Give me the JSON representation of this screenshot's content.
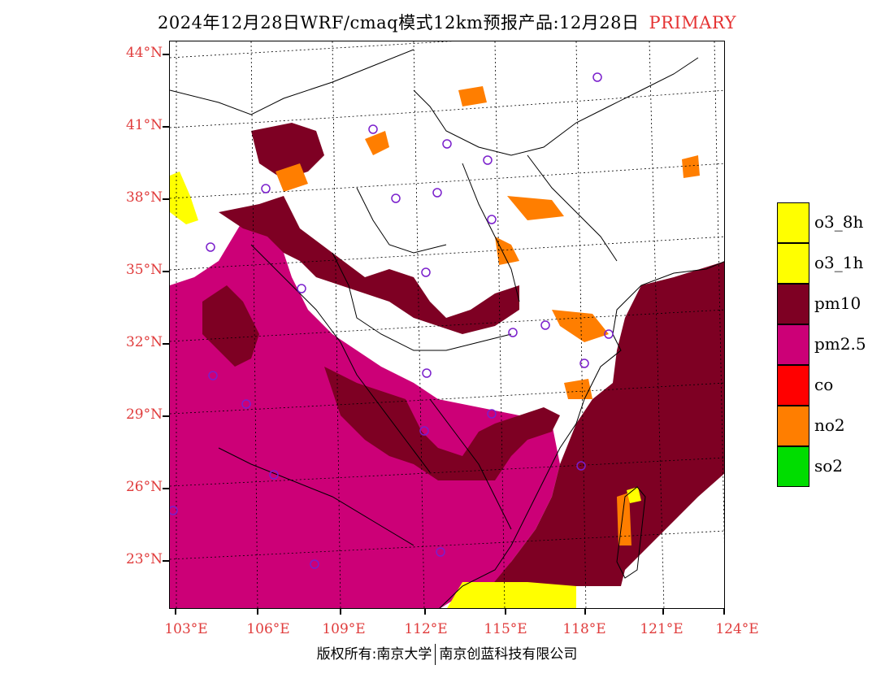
{
  "title": {
    "main": "2024年12月28日WRF/cmaq模式12km预报产品:12月28日",
    "tag": "PRIMARY"
  },
  "axes": {
    "lat_labels": [
      "44°N",
      "41°N",
      "38°N",
      "35°N",
      "32°N",
      "29°N",
      "26°N",
      "23°N"
    ],
    "lon_labels": [
      "103°E",
      "106°E",
      "109°E",
      "112°E",
      "115°E",
      "118°E",
      "121°E",
      "124°E"
    ]
  },
  "legend": [
    {
      "label": "o3_8h",
      "color": "#ffff00"
    },
    {
      "label": "o3_1h",
      "color": "#ffff00"
    },
    {
      "label": "pm10",
      "color": "#7e0023"
    },
    {
      "label": "pm2.5",
      "color": "#cc0077"
    },
    {
      "label": "co",
      "color": "#ff0000"
    },
    {
      "label": "no2",
      "color": "#ff7e00"
    },
    {
      "label": "so2",
      "color": "#00dd00"
    }
  ],
  "copyright": {
    "left": "版权所有:南京大学",
    "right": "南京创蓝科技有限公司"
  }
}
